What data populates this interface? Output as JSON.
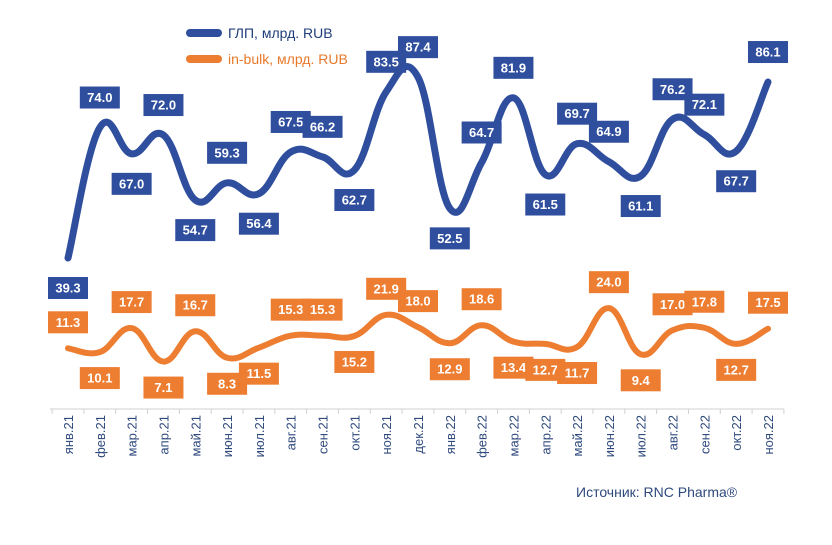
{
  "chart_data": {
    "type": "line",
    "title": "",
    "xlabel": "",
    "ylabel": "",
    "categories": [
      "янв.21",
      "фев.21",
      "мар.21",
      "апр.21",
      "май.21",
      "июн.21",
      "июл.21",
      "авг.21",
      "сен.21",
      "окт.21",
      "ноя.21",
      "дек.21",
      "янв.22",
      "фев.22",
      "мар.22",
      "апр.22",
      "май.22",
      "июн.22",
      "июл.22",
      "авг.22",
      "сен.22",
      "окт.22",
      "ноя.22"
    ],
    "series": [
      {
        "name": "ГЛП, млрд. RUB",
        "color": "#2f4f9e",
        "values": [
          39.3,
          74.0,
          67.0,
          72.0,
          54.7,
          59.3,
          56.4,
          67.5,
          66.2,
          62.7,
          83.5,
          87.4,
          52.5,
          64.7,
          81.9,
          61.5,
          69.7,
          64.9,
          61.1,
          76.2,
          72.1,
          67.7,
          86.1
        ],
        "labels": [
          "39.3",
          "74.0",
          "67.0",
          "72.0",
          "54.7",
          "59.3",
          "56.4",
          "67.5",
          "66.2",
          "62.7",
          "83.5",
          "87.4",
          "52.5",
          "64.7",
          "81.9",
          "61.5",
          "69.7",
          "64.9",
          "61.1",
          "76.2",
          "72.1",
          "67.7",
          "86.1"
        ]
      },
      {
        "name": "in-bulk, млрд. RUB",
        "color": "#ed7d31",
        "values": [
          11.3,
          10.1,
          17.7,
          7.1,
          16.7,
          8.3,
          11.5,
          15.3,
          15.3,
          15.2,
          21.9,
          18.0,
          12.9,
          18.6,
          13.4,
          12.7,
          11.7,
          24.0,
          9.4,
          17.0,
          17.8,
          12.7,
          17.5
        ],
        "labels": [
          "11.3",
          "10.1",
          "17.7",
          "7.1",
          "16.7",
          "8.3",
          "11.5",
          "15.3",
          "15.3",
          "15.2",
          "21.9",
          "18.0",
          "12.9",
          "18.6",
          "13.4",
          "12.7",
          "11.7",
          "24.0",
          "9.4",
          "17.0",
          "17.8",
          "12.7",
          "17.5"
        ]
      }
    ],
    "legend_position": "top-left",
    "grid": false
  },
  "source_text": "Источник: RNC Pharma®"
}
